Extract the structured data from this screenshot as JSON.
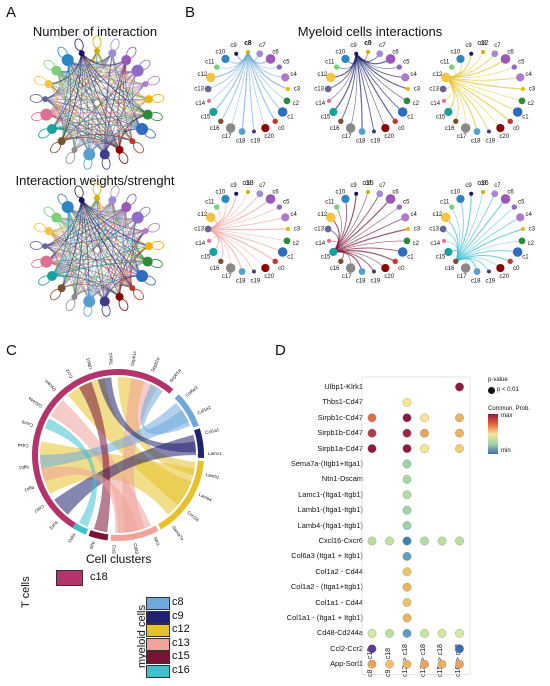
{
  "panels": {
    "A": {
      "letter": "A",
      "title_top": "Number of interaction",
      "title_bottom": "Interaction weights/strenght"
    },
    "B": {
      "letter": "B",
      "title": "Myeloid cells interactions",
      "networks": [
        {
          "name": "c8"
        },
        {
          "name": "c9"
        },
        {
          "name": "c12"
        },
        {
          "name": "c13"
        },
        {
          "name": "c15"
        },
        {
          "name": "c16"
        }
      ],
      "node_labels": [
        "c8",
        "c7",
        "c6",
        "c5",
        "c4",
        "c3",
        "c2",
        "c1",
        "c0",
        "c20",
        "c19",
        "c18",
        "c17",
        "c16",
        "c15",
        "c14",
        "c13",
        "c12",
        "c11",
        "c10",
        "c9"
      ]
    },
    "C": {
      "letter": "C",
      "cell_clusters_title": "Cell clusters",
      "t_cells_label": "T cells",
      "t_cluster": "c18",
      "myeloid_label": "myeloid cells",
      "myeloid_clusters": [
        "c8",
        "c9",
        "c12",
        "c13",
        "c15",
        "c16"
      ],
      "gene_labels": [
        "Klrk1",
        "Sorl1",
        "Cd47",
        "Itga1",
        "Itgb1",
        "Cd44",
        "Cxcr6",
        "Cd244a",
        "Dscam",
        "Ccr2",
        "Ulbp1",
        "Thbs1",
        "Sirpb1c",
        "Sirpb1b",
        "Sirpb1a",
        "Col6a3",
        "Col1a2",
        "Col1a1",
        "Lamc1",
        "Lamb1",
        "Lamb4",
        "Cxcl16",
        "Sema7a",
        "Ntn1",
        "Cd48",
        "Ccl2",
        "App"
      ]
    },
    "D": {
      "letter": "D",
      "legend_pvalue_title": "p-value",
      "legend_pvalue_item": "p < 0.01",
      "legend_prob_title": "Commun. Prob.",
      "legend_prob_max": "max",
      "legend_prob_min": "min",
      "rows": [
        "Ulbp1-Klrk1",
        "Thbs1-Cd47",
        "Sirpb1c-Cd47",
        "Sirpb1b-Cd47",
        "Sirpb1a-Cd47",
        "Sema7a-(Itgb1+Itga1)",
        "Ntn1-Dscam",
        "Lamc1-(Itga1-Itgb1)",
        "Lamb1-(Itga1-Itgb1)",
        "Lamb4-(Itga1-Itgb1)",
        "Cxcl16-Cxcr6",
        "Col6a3 (Itga1 + Itgb1)",
        "Col1a2 - Cd44",
        "Col1a2 - (Itga1+Itgb1)",
        "Col1a1 - Cd44",
        "Col1a1 - (Itga1 + Itgb1)",
        "Cd48-Cd244a",
        "Ccl2-Ccr2",
        "App-Sorl1"
      ],
      "columns": [
        "c8 -> c18",
        "c9 -> c18",
        "c12 -> c18",
        "c13 -> c18",
        "c15 -> c18",
        "c16 -> c18"
      ],
      "dots": [
        {
          "row": 0,
          "col": 5,
          "color": "#8e1b3f"
        },
        {
          "row": 1,
          "col": 2,
          "color": "#f5ea8a"
        },
        {
          "row": 2,
          "col": 0,
          "color": "#e06e4a"
        },
        {
          "row": 2,
          "col": 2,
          "color": "#8e1b3f"
        },
        {
          "row": 2,
          "col": 3,
          "color": "#f5e59a"
        },
        {
          "row": 2,
          "col": 5,
          "color": "#e8b460"
        },
        {
          "row": 3,
          "col": 0,
          "color": "#b13c48"
        },
        {
          "row": 3,
          "col": 2,
          "color": "#9e2744"
        },
        {
          "row": 3,
          "col": 3,
          "color": "#e8a55c"
        },
        {
          "row": 3,
          "col": 5,
          "color": "#e8b460"
        },
        {
          "row": 4,
          "col": 0,
          "color": "#8e1b3f"
        },
        {
          "row": 4,
          "col": 2,
          "color": "#8e1b3f"
        },
        {
          "row": 4,
          "col": 3,
          "color": "#f5ea8a"
        },
        {
          "row": 4,
          "col": 5,
          "color": "#f0d070"
        },
        {
          "row": 5,
          "col": 2,
          "color": "#9fd4a6"
        },
        {
          "row": 6,
          "col": 2,
          "color": "#a9d9a2"
        },
        {
          "row": 7,
          "col": 2,
          "color": "#b2dca0"
        },
        {
          "row": 8,
          "col": 2,
          "color": "#9fd4a6"
        },
        {
          "row": 9,
          "col": 2,
          "color": "#9fd4a6"
        },
        {
          "row": 10,
          "col": 0,
          "color": "#b9df9e"
        },
        {
          "row": 10,
          "col": 1,
          "color": "#c0e29c"
        },
        {
          "row": 10,
          "col": 2,
          "color": "#3a83b8"
        },
        {
          "row": 10,
          "col": 3,
          "color": "#b2dca0"
        },
        {
          "row": 10,
          "col": 4,
          "color": "#b9df9e"
        },
        {
          "row": 10,
          "col": 5,
          "color": "#b9df9e"
        },
        {
          "row": 11,
          "col": 2,
          "color": "#5e9fc0"
        },
        {
          "row": 12,
          "col": 2,
          "color": "#e8c36c"
        },
        {
          "row": 13,
          "col": 2,
          "color": "#e8b460"
        },
        {
          "row": 14,
          "col": 2,
          "color": "#e8c36c"
        },
        {
          "row": 15,
          "col": 2,
          "color": "#e8b460"
        },
        {
          "row": 16,
          "col": 0,
          "color": "#d2e99e"
        },
        {
          "row": 16,
          "col": 1,
          "color": "#b9df9e"
        },
        {
          "row": 16,
          "col": 2,
          "color": "#5e9fc0"
        },
        {
          "row": 16,
          "col": 3,
          "color": "#c8e59c"
        },
        {
          "row": 16,
          "col": 4,
          "color": "#d2e99e"
        },
        {
          "row": 16,
          "col": 5,
          "color": "#d2e99e"
        },
        {
          "row": 17,
          "col": 0,
          "color": "#5e3a8e"
        },
        {
          "row": 17,
          "col": 5,
          "color": "#3a6db8"
        },
        {
          "row": 18,
          "col": 0,
          "color": "#e8a55c"
        },
        {
          "row": 18,
          "col": 1,
          "color": "#f0c070"
        },
        {
          "row": 18,
          "col": 2,
          "color": "#e8b460"
        },
        {
          "row": 18,
          "col": 3,
          "color": "#e8a55c"
        },
        {
          "row": 18,
          "col": 4,
          "color": "#e8b460"
        },
        {
          "row": 18,
          "col": 5,
          "color": "#e8a55c"
        }
      ]
    }
  },
  "colors": {
    "c18": "#b3336a",
    "c8": "#6fa9dc",
    "c9": "#1f2270",
    "c12": "#e6c12a",
    "c13": "#efa39a",
    "c15": "#7a1437",
    "c16": "#3fc1d0",
    "cluster_palette": [
      "#d4b000",
      "#a08cd6",
      "#9b59b6",
      "#8e6cc7",
      "#b07acb",
      "#f0b400",
      "#2a8c3a",
      "#2d6cc0",
      "#c0392b",
      "#8b0000",
      "#3c3c8a",
      "#55a0d0",
      "#8a8a8a",
      "#7a5230",
      "#1aa0a0",
      "#e07090",
      "#666699",
      "#f5c542",
      "#7ad07a",
      "#2e86c1",
      "#1b1464"
    ]
  }
}
